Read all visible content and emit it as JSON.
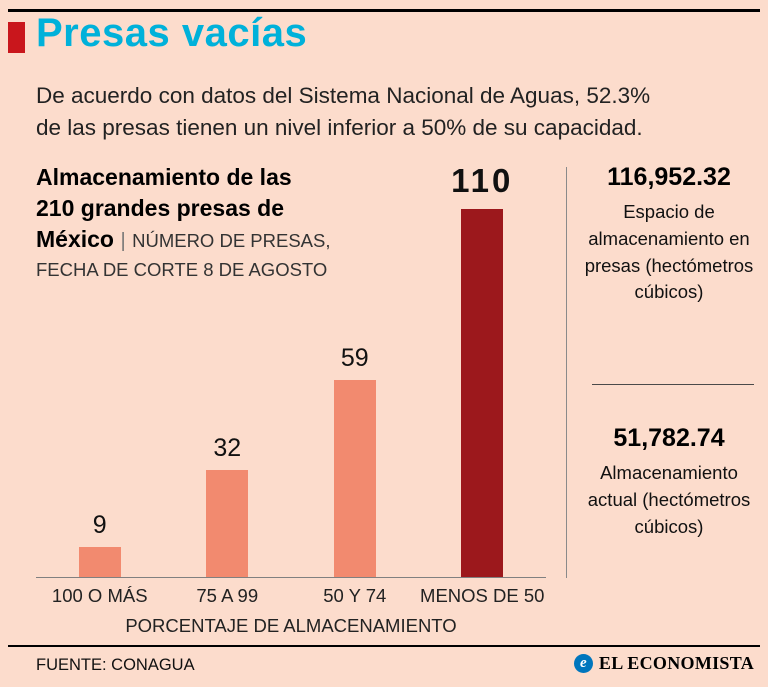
{
  "colors": {
    "background": "#fcdccc",
    "title_cyan": "#00b1da",
    "accent_red": "#c9161c",
    "bar_salmon": "#f28a6f",
    "bar_dark_red": "#9c181c",
    "brand_blue": "#0076bd"
  },
  "header": {
    "title": "Presas vacías",
    "subtitle_lines": [
      "De acuerdo con datos del Sistema Nacional de Aguas, 52.3%",
      "de las presas tienen un nivel inferior a 50% de su capacidad."
    ]
  },
  "chart": {
    "title_bold_line1": "Almacenamiento de las",
    "title_bold_line2": "210 grandes presas de",
    "title_bold_line3": "México",
    "separator": "|",
    "title_light_line1": "NÚMERO DE PRESAS,",
    "title_light_line2": "FECHA DE CORTE 8 DE AGOSTO"
  },
  "chart_data": {
    "type": "bar",
    "title": "Almacenamiento de las 210 grandes presas de México | NÚMERO DE PRESAS, FECHA DE CORTE 8 DE AGOSTO",
    "categories": [
      "100 O MÁS",
      "75 A 99",
      "50 Y 74",
      "MENOS DE 50"
    ],
    "values": [
      9,
      32,
      59,
      110
    ],
    "highlight_index": 3,
    "xlabel": "PORCENTAJE DE ALMACENAMIENTO",
    "ylabel": "NÚMERO DE PRESAS",
    "ylim": [
      0,
      110
    ],
    "grid": false,
    "legend": false
  },
  "stats": [
    {
      "value": "116,952.32",
      "label": "Espacio de almacenamiento en presas (hectómetros cúbicos)"
    },
    {
      "value": "51,782.74",
      "label": "Almacenamiento actual (hectómetros cúbicos)"
    }
  ],
  "footer": {
    "source": "FUENTE: CONAGUA",
    "brand": "EL ECONOMISTA",
    "brand_icon": "e"
  }
}
